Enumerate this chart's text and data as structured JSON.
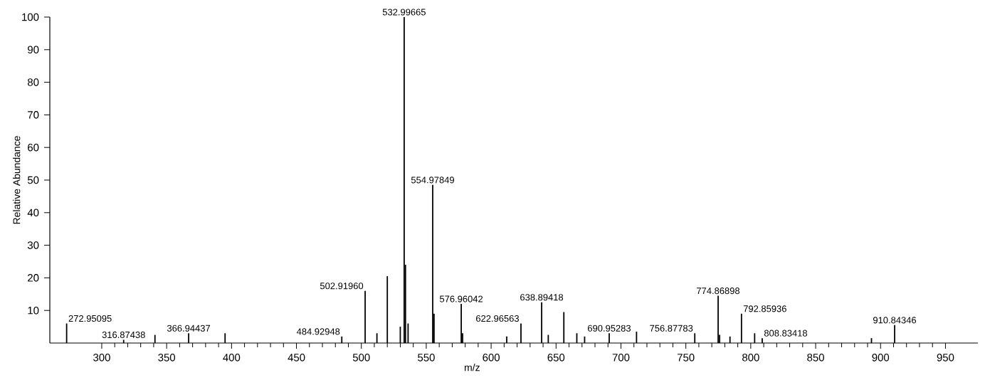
{
  "chart_data": {
    "type": "bar",
    "xlabel": "m/z",
    "ylabel": "Relative Abundance",
    "color": "#000000",
    "x": [
      272.95095,
      316.87438,
      341,
      366.94437,
      395,
      484.92948,
      502.9196,
      512,
      520,
      530,
      532.99665,
      534,
      536,
      554.97849,
      556,
      576.96042,
      578,
      612,
      622.96563,
      638.89418,
      644,
      656,
      666,
      672,
      690.95283,
      712,
      756.87783,
      774.86898,
      776,
      784,
      792.85936,
      803,
      808.83418,
      893,
      910.84346
    ],
    "values": [
      6,
      1,
      2.5,
      3,
      3,
      2,
      16,
      3,
      20.5,
      5,
      100,
      24,
      6,
      48.5,
      9,
      12,
      3,
      2,
      6,
      12.5,
      2.5,
      9.5,
      3,
      2,
      3,
      3.5,
      3,
      14.5,
      2.5,
      2,
      9,
      3,
      1.5,
      1.5,
      5.5
    ],
    "xlim": [
      260,
      975
    ],
    "ylim": [
      0,
      100
    ],
    "xticks": [
      300,
      350,
      400,
      450,
      500,
      550,
      600,
      650,
      700,
      750,
      800,
      850,
      900,
      950
    ],
    "yticks": [
      10,
      20,
      30,
      40,
      50,
      60,
      70,
      80,
      90,
      100
    ],
    "annotations": [
      {
        "text": "272.95095",
        "x": 272.95095,
        "y": 6
      },
      {
        "text": "316.87438",
        "x": 316.87438,
        "y": 1
      },
      {
        "text": "366.94437",
        "x": 366.94437,
        "y": 3
      },
      {
        "text": "484.92948",
        "x": 484.92948,
        "y": 2
      },
      {
        "text": "502.91960",
        "x": 502.9196,
        "y": 16
      },
      {
        "text": "532.99665",
        "x": 532.99665,
        "y": 100
      },
      {
        "text": "554.97849",
        "x": 554.97849,
        "y": 48.5
      },
      {
        "text": "576.96042",
        "x": 576.96042,
        "y": 12
      },
      {
        "text": "622.96563",
        "x": 622.96563,
        "y": 6
      },
      {
        "text": "638.89418",
        "x": 638.89418,
        "y": 12.5
      },
      {
        "text": "690.95283",
        "x": 690.95283,
        "y": 3
      },
      {
        "text": "756.87783",
        "x": 756.87783,
        "y": 3
      },
      {
        "text": "774.86898",
        "x": 774.86898,
        "y": 14.5
      },
      {
        "text": "792.85936",
        "x": 792.85936,
        "y": 9
      },
      {
        "text": "808.83418",
        "x": 808.83418,
        "y": 1.5
      },
      {
        "text": "910.84346",
        "x": 910.84346,
        "y": 5.5
      }
    ]
  }
}
